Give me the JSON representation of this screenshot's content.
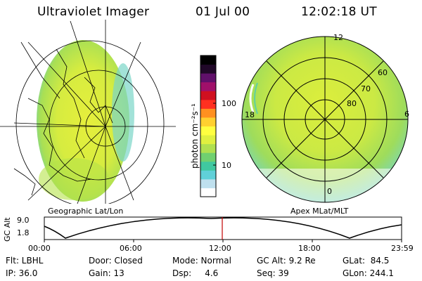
{
  "header": {
    "instrument": "Ultraviolet Imager",
    "date": "01 Jul 00",
    "time": "12:02:18 UT"
  },
  "left_panel": {
    "caption": "Geographic Lat/Lon"
  },
  "right_panel": {
    "caption": "Apex MLat/MLT",
    "mlt_labels": {
      "top": "12",
      "right": "6",
      "bottom": "0",
      "left": "18"
    },
    "lat_labels": [
      "60",
      "70",
      "80"
    ]
  },
  "colorbar": {
    "unit_label": "photon cm⁻²s⁻¹",
    "ticks": [
      "100",
      "10"
    ],
    "scale": "log",
    "colors": [
      "#ffffff",
      "#bfe0ee",
      "#60d0d8",
      "#40c8a0",
      "#70d070",
      "#b0e050",
      "#e0f040",
      "#ffff40",
      "#ffd030",
      "#ff9020",
      "#ff3020",
      "#d01020",
      "#a0106a",
      "#60106a",
      "#200828",
      "#000000"
    ]
  },
  "altitude_plot": {
    "ylabel": "GC Alt",
    "yticks": [
      "9.0",
      "1.8"
    ],
    "xticks": [
      "00:00",
      "06:00",
      "12:00",
      "18:00",
      "23:59"
    ],
    "marker_color": "#c00000"
  },
  "info": {
    "row1": {
      "flt": "Flt: LBHL",
      "door": "Door: Closed",
      "mode": "Mode: Normal",
      "gcalt": "GC Alt: 9.2 Re",
      "glat": "GLat:  84.5"
    },
    "row2": {
      "ip": "IP: 36.0",
      "gain": "Gain: 13",
      "dsp": "Dsp:     4.6",
      "seq": "Seq: 39",
      "glon": "GLon: 244.1"
    }
  }
}
